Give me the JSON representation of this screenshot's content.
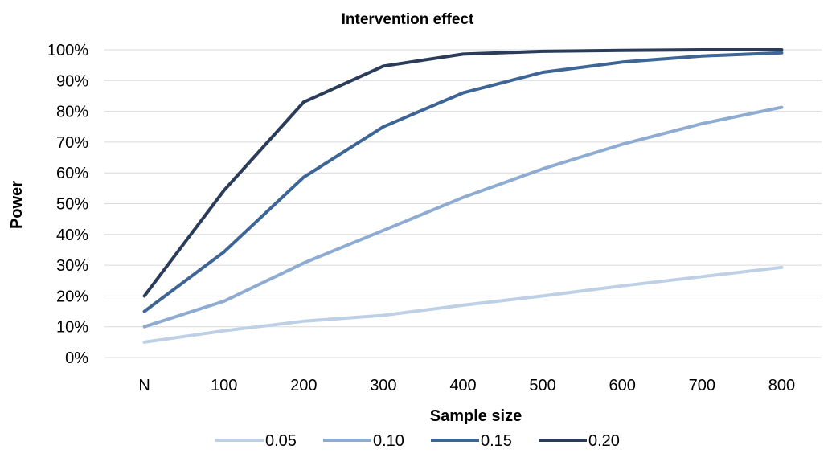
{
  "chart_data": {
    "type": "line",
    "title": "Intervention effect",
    "xlabel": "Sample size",
    "ylabel": "Power",
    "categories": [
      "N",
      "100",
      "200",
      "300",
      "400",
      "500",
      "600",
      "700",
      "800"
    ],
    "ylim": [
      0,
      100
    ],
    "y_ticks": [
      "0%",
      "10%",
      "20%",
      "30%",
      "40%",
      "50%",
      "60%",
      "70%",
      "80%",
      "90%",
      "100%"
    ],
    "grid": true,
    "legend_position": "bottom",
    "series": [
      {
        "name": "0.05",
        "color": "#bdd0e6",
        "values": [
          5,
          8.7,
          11.8,
          13.7,
          17,
          20,
          23.3,
          26.3,
          29.3
        ]
      },
      {
        "name": "0.10",
        "color": "#8eacd2",
        "values": [
          10,
          18.3,
          30.7,
          41.3,
          52,
          61.3,
          69.3,
          76,
          81.3
        ]
      },
      {
        "name": "0.15",
        "color": "#3d6696",
        "values": [
          15,
          34.3,
          58.6,
          75,
          86,
          92.7,
          96,
          98,
          99
        ]
      },
      {
        "name": "0.20",
        "color": "#2b3c5b",
        "values": [
          20,
          54.3,
          83,
          94.7,
          98.6,
          99.5,
          99.8,
          100,
          100
        ]
      }
    ]
  }
}
